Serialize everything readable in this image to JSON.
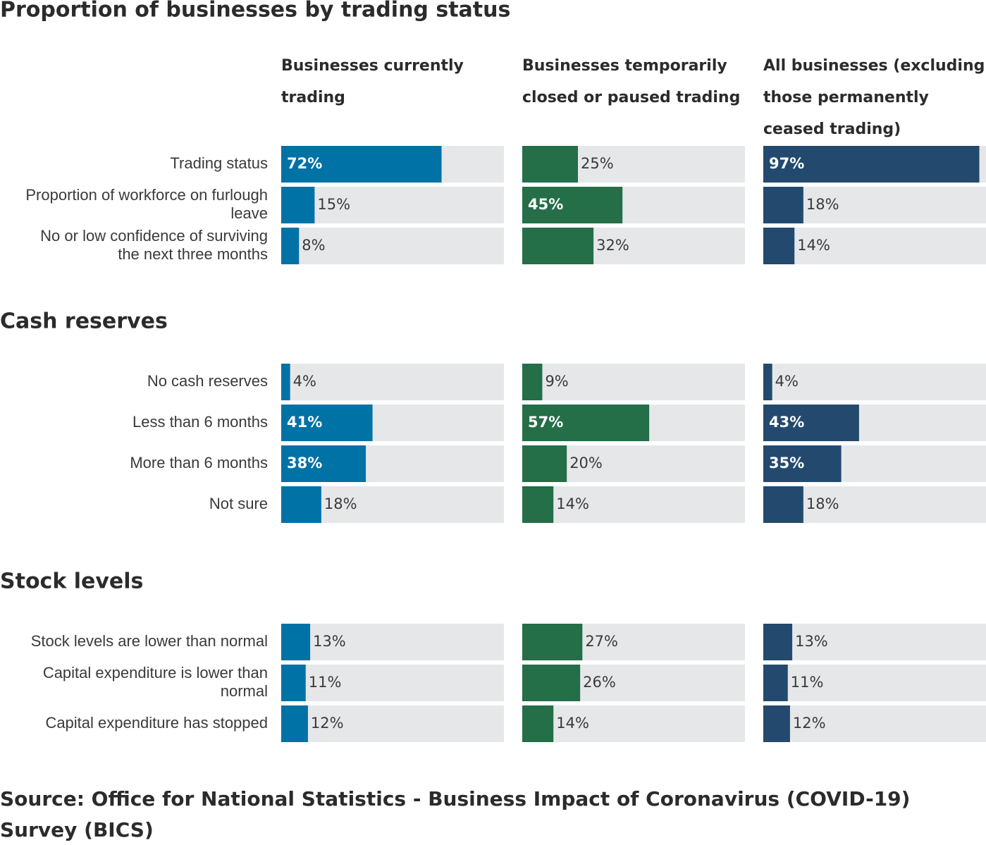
{
  "colors": {
    "track": "#e6e7e9",
    "series": [
      "#0072a6",
      "#246e48",
      "#234a6e"
    ]
  },
  "columns": [
    {
      "lines": [
        "Businesses currently",
        "trading"
      ]
    },
    {
      "lines": [
        "Businesses temporarily",
        "closed or paused trading"
      ]
    },
    {
      "lines": [
        "All businesses (excluding",
        "those permanently",
        "ceased trading)"
      ]
    }
  ],
  "chart_data": [
    {
      "type": "bar",
      "title": "Proportion of businesses by trading status",
      "xlim": [
        0,
        100
      ],
      "categories": [
        [
          "Trading status"
        ],
        [
          "Proportion of workforce on furlough",
          "leave"
        ],
        [
          "No or low confidence of surviving",
          "the next three months"
        ]
      ],
      "series": [
        {
          "name": "Businesses currently trading",
          "values": [
            72,
            15,
            8
          ]
        },
        {
          "name": "Businesses temporarily closed or paused trading",
          "values": [
            25,
            45,
            32
          ]
        },
        {
          "name": "All businesses (excluding those permanently ceased trading)",
          "values": [
            97,
            18,
            14
          ]
        }
      ]
    },
    {
      "type": "bar",
      "title": "Cash reserves",
      "xlim": [
        0,
        100
      ],
      "categories": [
        [
          "No cash reserves"
        ],
        [
          "Less than 6 months"
        ],
        [
          "More than 6 months"
        ],
        [
          "Not sure"
        ]
      ],
      "series": [
        {
          "name": "Businesses currently trading",
          "values": [
            4,
            41,
            38,
            18
          ]
        },
        {
          "name": "Businesses temporarily closed or paused trading",
          "values": [
            9,
            57,
            20,
            14
          ]
        },
        {
          "name": "All businesses (excluding those permanently ceased trading)",
          "values": [
            4,
            43,
            35,
            18
          ]
        }
      ]
    },
    {
      "type": "bar",
      "title": "Stock levels",
      "xlim": [
        0,
        100
      ],
      "categories": [
        [
          "Stock levels are lower than normal"
        ],
        [
          "Capital expenditure is lower than",
          "normal"
        ],
        [
          "Capital expenditure has stopped"
        ]
      ],
      "series": [
        {
          "name": "Businesses currently trading",
          "values": [
            13,
            11,
            12
          ]
        },
        {
          "name": "Businesses temporarily closed or paused trading",
          "values": [
            27,
            26,
            14
          ]
        },
        {
          "name": "All businesses (excluding those permanently ceased trading)",
          "values": [
            13,
            11,
            12
          ]
        }
      ]
    }
  ],
  "source": {
    "lines": [
      "Source: Office for National Statistics - Business Impact of Coronavirus (COVID-19)",
      "Survey (BICS)"
    ]
  }
}
